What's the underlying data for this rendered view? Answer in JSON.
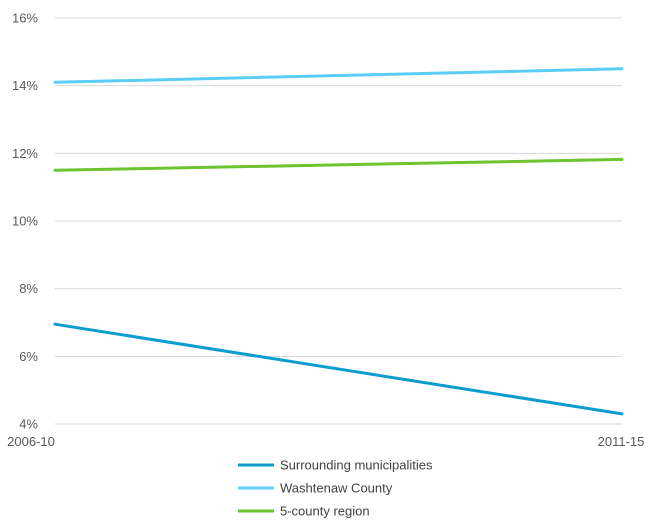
{
  "chart_data": {
    "type": "line",
    "title": "",
    "xlabel": "",
    "ylabel": "",
    "categories": [
      "2006-10",
      "2011-15"
    ],
    "y_ticks": [
      "4%",
      "6%",
      "8%",
      "10%",
      "12%",
      "14%",
      "16%"
    ],
    "ylim": [
      4,
      16
    ],
    "y_unit": "%",
    "grid": "horizontal",
    "legend_position": "bottom",
    "series": [
      {
        "name": "Surrounding municipalities",
        "values": [
          6.95,
          4.3
        ],
        "color": "#0b9dd0"
      },
      {
        "name": "Washtenaw County",
        "values": [
          14.1,
          14.5
        ],
        "color": "#5bcdf8"
      },
      {
        "name": "5-county region",
        "values": [
          11.5,
          11.82
        ],
        "color": "#6cc430"
      }
    ]
  }
}
